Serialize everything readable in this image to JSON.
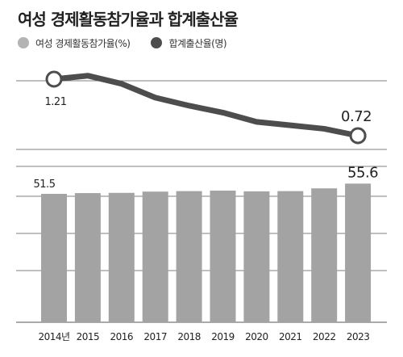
{
  "colors": {
    "background": "#ffffff",
    "bar": "#a3a3a3",
    "line": "#4d4d4d",
    "gridline": "#555555",
    "text": "#222222"
  },
  "title": "여성 경제활동참가율과 합계출산율",
  "legend": [
    {
      "label": "여성 경제활동참가율(%)",
      "color": "#b3b3b3"
    },
    {
      "label": "합계출산율(명)",
      "color": "#4d4d4d"
    }
  ],
  "chart_data": {
    "type": "bar",
    "title": "여성 경제활동참가율과 합계출산율",
    "categories": [
      "2014년",
      "2015",
      "2016",
      "2017",
      "2018",
      "2019",
      "2020",
      "2021",
      "2022",
      "2023"
    ],
    "series": [
      {
        "name": "여성 경제활동참가율(%)",
        "type": "bar",
        "values": [
          51.5,
          51.8,
          51.9,
          52.4,
          52.6,
          52.8,
          52.5,
          52.6,
          53.7,
          55.6
        ],
        "value_labels": [
          "51.5",
          "",
          "",
          "",
          "",
          "",
          "",
          "",
          "",
          "55.6"
        ]
      },
      {
        "name": "합계출산율(명)",
        "type": "line",
        "values": [
          1.21,
          1.24,
          1.17,
          1.05,
          0.98,
          0.92,
          0.84,
          0.81,
          0.78,
          0.72
        ],
        "value_labels": [
          "1.21",
          "",
          "",
          "",
          "",
          "",
          "",
          "",
          "",
          "0.72"
        ]
      }
    ],
    "grid": true,
    "legend_position": "top-left"
  }
}
